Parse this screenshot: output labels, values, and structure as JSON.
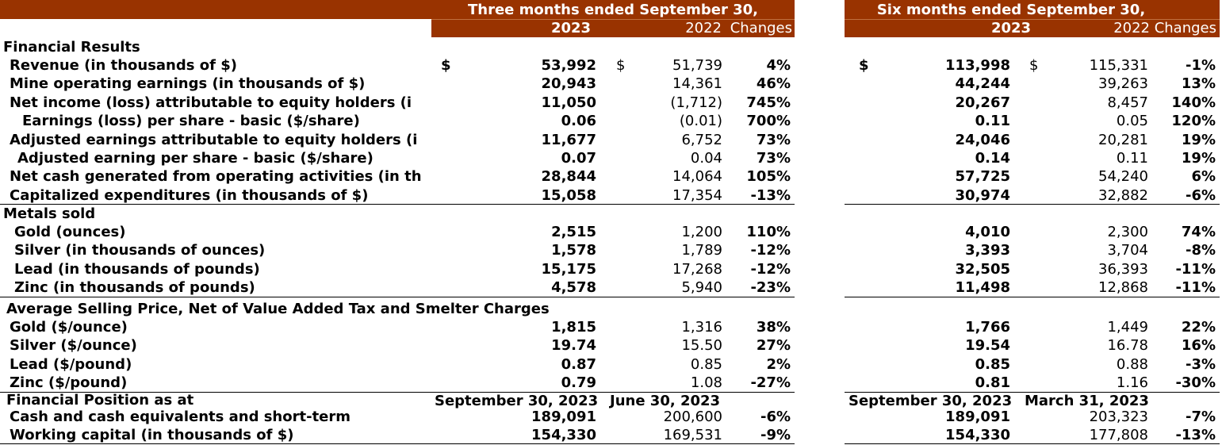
{
  "header": {
    "left": {
      "period": "Three months ended September 30,",
      "year_a": "2023",
      "year_b": "2022",
      "change": "Changes"
    },
    "right": {
      "period": "Six months ended September 30,",
      "year_a": "2023",
      "year_b": "2022",
      "change": "Changes"
    }
  },
  "currency_symbol": "$",
  "sections": {
    "financial_results": "Financial Results",
    "metals_sold": "Metals sold",
    "avg_price": "Average Selling Price, Net of Value Added Tax and Smelter Charges",
    "fin_position": "Financial Position as at"
  },
  "financial_results": [
    {
      "label": "Revenue (in thousands of $)",
      "q23": "53,992",
      "q22": "51,739",
      "qc": "4%",
      "h23": "113,998",
      "h22": "115,331",
      "hc": "-1%"
    },
    {
      "label": "Mine operating earnings (in thousands of $)",
      "q23": "20,943",
      "q22": "14,361",
      "qc": "46%",
      "h23": "44,244",
      "h22": "39,263",
      "hc": "13%"
    },
    {
      "label": "Net income (loss) attributable to equity holders (i",
      "q23": "11,050",
      "q22": "(1,712)",
      "qc": "745%",
      "h23": "20,267",
      "h22": "8,457",
      "hc": "140%"
    },
    {
      "label": "Earnings (loss) per share - basic ($/share)",
      "q23": "0.06",
      "q22": "(0.01)",
      "qc": "700%",
      "h23": "0.11",
      "h22": "0.05",
      "hc": "120%"
    },
    {
      "label": "Adjusted earnings attributable to equity holders (i",
      "q23": "11,677",
      "q22": "6,752",
      "qc": "73%",
      "h23": "24,046",
      "h22": "20,281",
      "hc": "19%"
    },
    {
      "label": "Adjusted earning per share - basic ($/share)",
      "q23": "0.07",
      "q22": "0.04",
      "qc": "73%",
      "h23": "0.14",
      "h22": "0.11",
      "hc": "19%"
    },
    {
      "label": "Net cash generated from operating activities (in th",
      "q23": "28,844",
      "q22": "14,064",
      "qc": "105%",
      "h23": "57,725",
      "h22": "54,240",
      "hc": "6%"
    },
    {
      "label": "Capitalized expenditures (in thousands of $)",
      "q23": "15,058",
      "q22": "17,354",
      "qc": "-13%",
      "h23": "30,974",
      "h22": "32,882",
      "hc": "-6%"
    }
  ],
  "metals_sold": [
    {
      "label": "Gold (ounces)",
      "q23": "2,515",
      "q22": "1,200",
      "qc": "110%",
      "h23": "4,010",
      "h22": "2,300",
      "hc": "74%"
    },
    {
      "label": "Silver (in thousands of ounces)",
      "q23": "1,578",
      "q22": "1,789",
      "qc": "-12%",
      "h23": "3,393",
      "h22": "3,704",
      "hc": "-8%"
    },
    {
      "label": "Lead (in thousands of pounds)",
      "q23": "15,175",
      "q22": "17,268",
      "qc": "-12%",
      "h23": "32,505",
      "h22": "36,393",
      "hc": "-11%"
    },
    {
      "label": "Zinc (in thousands of pounds)",
      "q23": "4,578",
      "q22": "5,940",
      "qc": "-23%",
      "h23": "11,498",
      "h22": "12,868",
      "hc": "-11%"
    }
  ],
  "avg_price": [
    {
      "label": "Gold ($/ounce)",
      "q23": "1,815",
      "q22": "1,316",
      "qc": "38%",
      "h23": "1,766",
      "h22": "1,449",
      "hc": "22%"
    },
    {
      "label": "Silver ($/ounce)",
      "q23": "19.74",
      "q22": "15.50",
      "qc": "27%",
      "h23": "19.54",
      "h22": "16.78",
      "hc": "16%"
    },
    {
      "label": "Lead ($/pound)",
      "q23": "0.87",
      "q22": "0.85",
      "qc": "2%",
      "h23": "0.85",
      "h22": "0.88",
      "hc": "-3%"
    },
    {
      "label": "Zinc ($/pound)",
      "q23": "0.79",
      "q22": "1.08",
      "qc": "-27%",
      "h23": "0.81",
      "h22": "1.16",
      "hc": "-30%"
    }
  ],
  "position_dates": {
    "left_a": "September 30, 2023",
    "left_b": "June 30, 2023",
    "right_a": "September 30, 2023",
    "right_b": "March 31, 2023"
  },
  "fin_position": [
    {
      "label": "Cash and cash equivalents and short-term",
      "q23": "189,091",
      "q22": "200,600",
      "qc": "-6%",
      "h23": "189,091",
      "h22": "203,323",
      "hc": "-7%"
    },
    {
      "label": "Working capital (in thousands of $)",
      "q23": "154,330",
      "q22": "169,531",
      "qc": "-9%",
      "h23": "154,330",
      "h22": "177,808",
      "hc": "-13%"
    }
  ]
}
